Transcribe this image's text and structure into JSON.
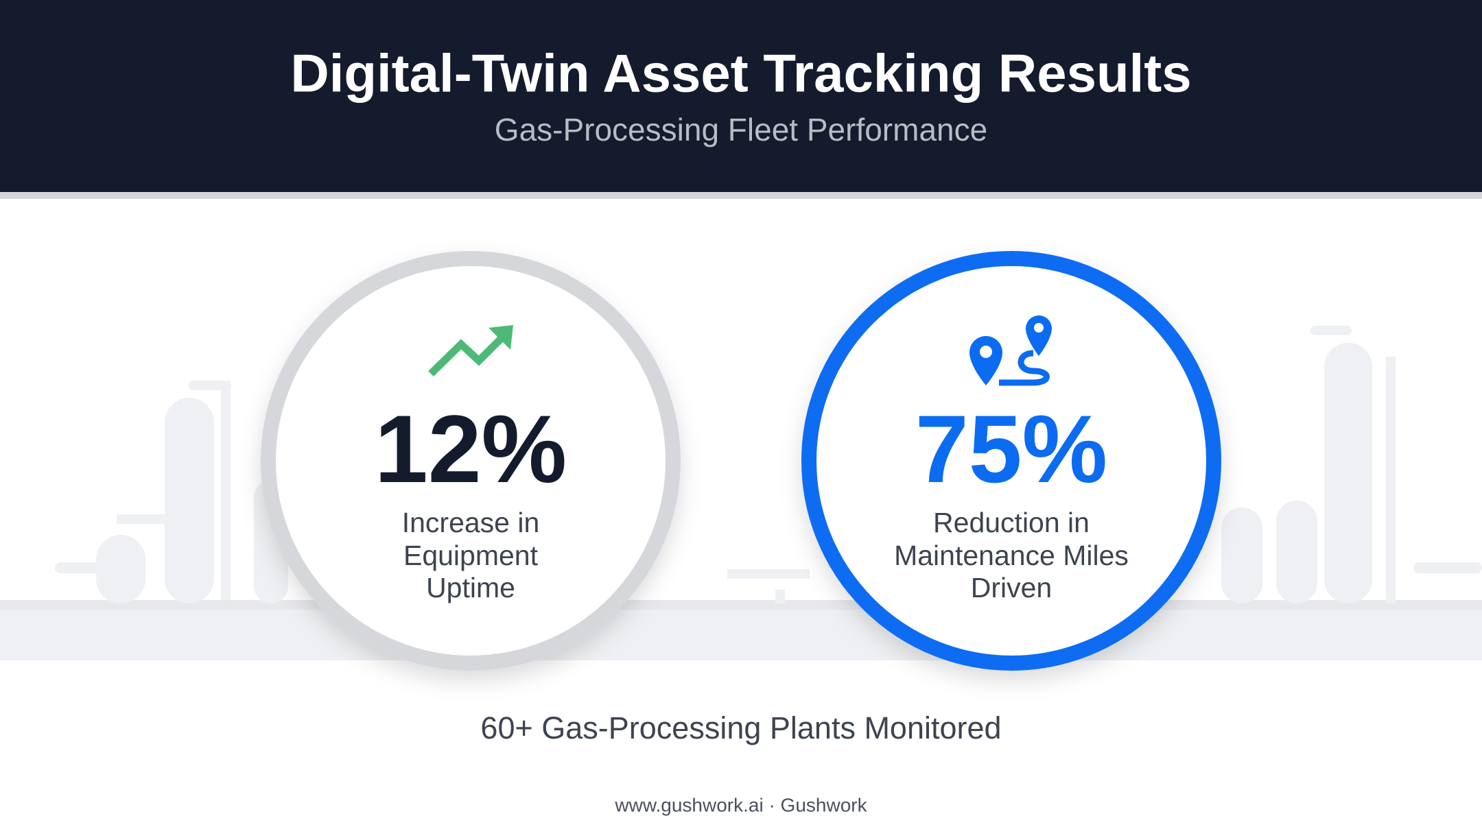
{
  "header": {
    "title": "Digital-Twin Asset Tracking Results",
    "subtitle": "Gas-Processing Fleet Performance"
  },
  "stats": [
    {
      "value": "12%",
      "label_lines": [
        "Increase in",
        "Equipment",
        "Uptime"
      ]
    },
    {
      "value": "75%",
      "label_lines": [
        "Reduction in",
        "Maintenance Miles",
        "Driven"
      ]
    }
  ],
  "summary": "60+ Gas-Processing Plants Monitored",
  "footer": "www.gushwork.ai · Gushwork"
}
